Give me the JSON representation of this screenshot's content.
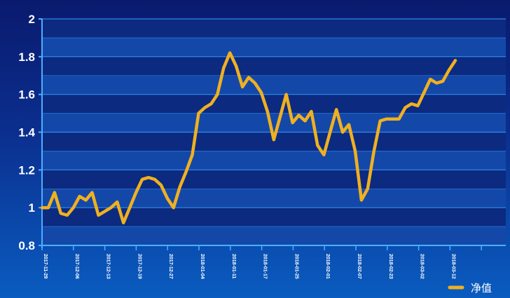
{
  "chart_data": {
    "type": "line",
    "title": "",
    "xlabel": "",
    "ylabel": "",
    "ylim": [
      0.8,
      2.0
    ],
    "yticks": [
      0.8,
      1,
      1.2,
      1.4,
      1.6,
      1.8,
      2
    ],
    "ytick_labels": [
      "0.8",
      "1",
      "1.2",
      "1.4",
      "1.6",
      "1.8",
      "2"
    ],
    "xtick_labels": [
      "2017-11-29",
      "2017-12-06",
      "2017-12-13",
      "2017-12-19",
      "2017-12-27",
      "2018-01-04",
      "2018-01-11",
      "2018-01-17",
      "2018-01-25",
      "2018-02-01",
      "2018-02-07",
      "2018-02-23",
      "2018-03-02",
      "2018-03-12"
    ],
    "grid": true,
    "legend_position": "bottom-right",
    "colors": {
      "line": "#f0b020",
      "band_dark": "#0b2a80",
      "band_light": "#1448a8",
      "grid": "#3aa0ff",
      "axis": "#4ab0ff"
    },
    "series": [
      {
        "name": "净值",
        "values": [
          1.0,
          1.0,
          1.08,
          0.97,
          0.96,
          1.0,
          1.06,
          1.04,
          1.08,
          0.96,
          0.98,
          1.0,
          1.03,
          0.92,
          1.0,
          1.08,
          1.15,
          1.16,
          1.15,
          1.12,
          1.05,
          1.0,
          1.11,
          1.19,
          1.28,
          1.5,
          1.53,
          1.55,
          1.6,
          1.74,
          1.82,
          1.75,
          1.64,
          1.69,
          1.66,
          1.61,
          1.51,
          1.36,
          1.48,
          1.6,
          1.45,
          1.49,
          1.46,
          1.51,
          1.33,
          1.28,
          1.4,
          1.52,
          1.4,
          1.44,
          1.3,
          1.04,
          1.1,
          1.3,
          1.46,
          1.47,
          1.47,
          1.47,
          1.53,
          1.55,
          1.54,
          1.61,
          1.68,
          1.66,
          1.67,
          1.73,
          1.78
        ]
      }
    ]
  }
}
